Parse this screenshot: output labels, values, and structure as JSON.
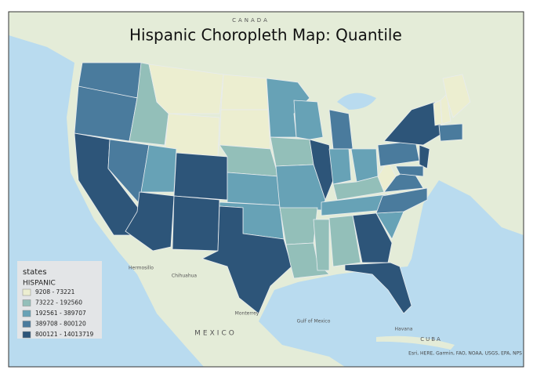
{
  "map": {
    "title": "Hispanic Choropleth Map: Quantile",
    "legend": {
      "layer": "states",
      "field": "HISPANIC",
      "classes": [
        {
          "label": "9208 - 73221",
          "color": "#eceed0"
        },
        {
          "label": "73222 - 192560",
          "color": "#93bfb9"
        },
        {
          "label": "192561 - 389707",
          "color": "#67a2b6"
        },
        {
          "label": "389708 - 800120",
          "color": "#4a7b9d"
        },
        {
          "label": "800121 - 14013719",
          "color": "#2d5579"
        }
      ]
    },
    "basemap_labels": [
      "CANADA",
      "MEXICO",
      "Gulf of Mexico",
      "CUBA",
      "Havana",
      "Monterrey",
      "Chihuahua",
      "Hermosillo"
    ],
    "attribution": "Esri, HERE, Garmin, FAO, NOAA, USGS, EPA, NPS"
  }
}
